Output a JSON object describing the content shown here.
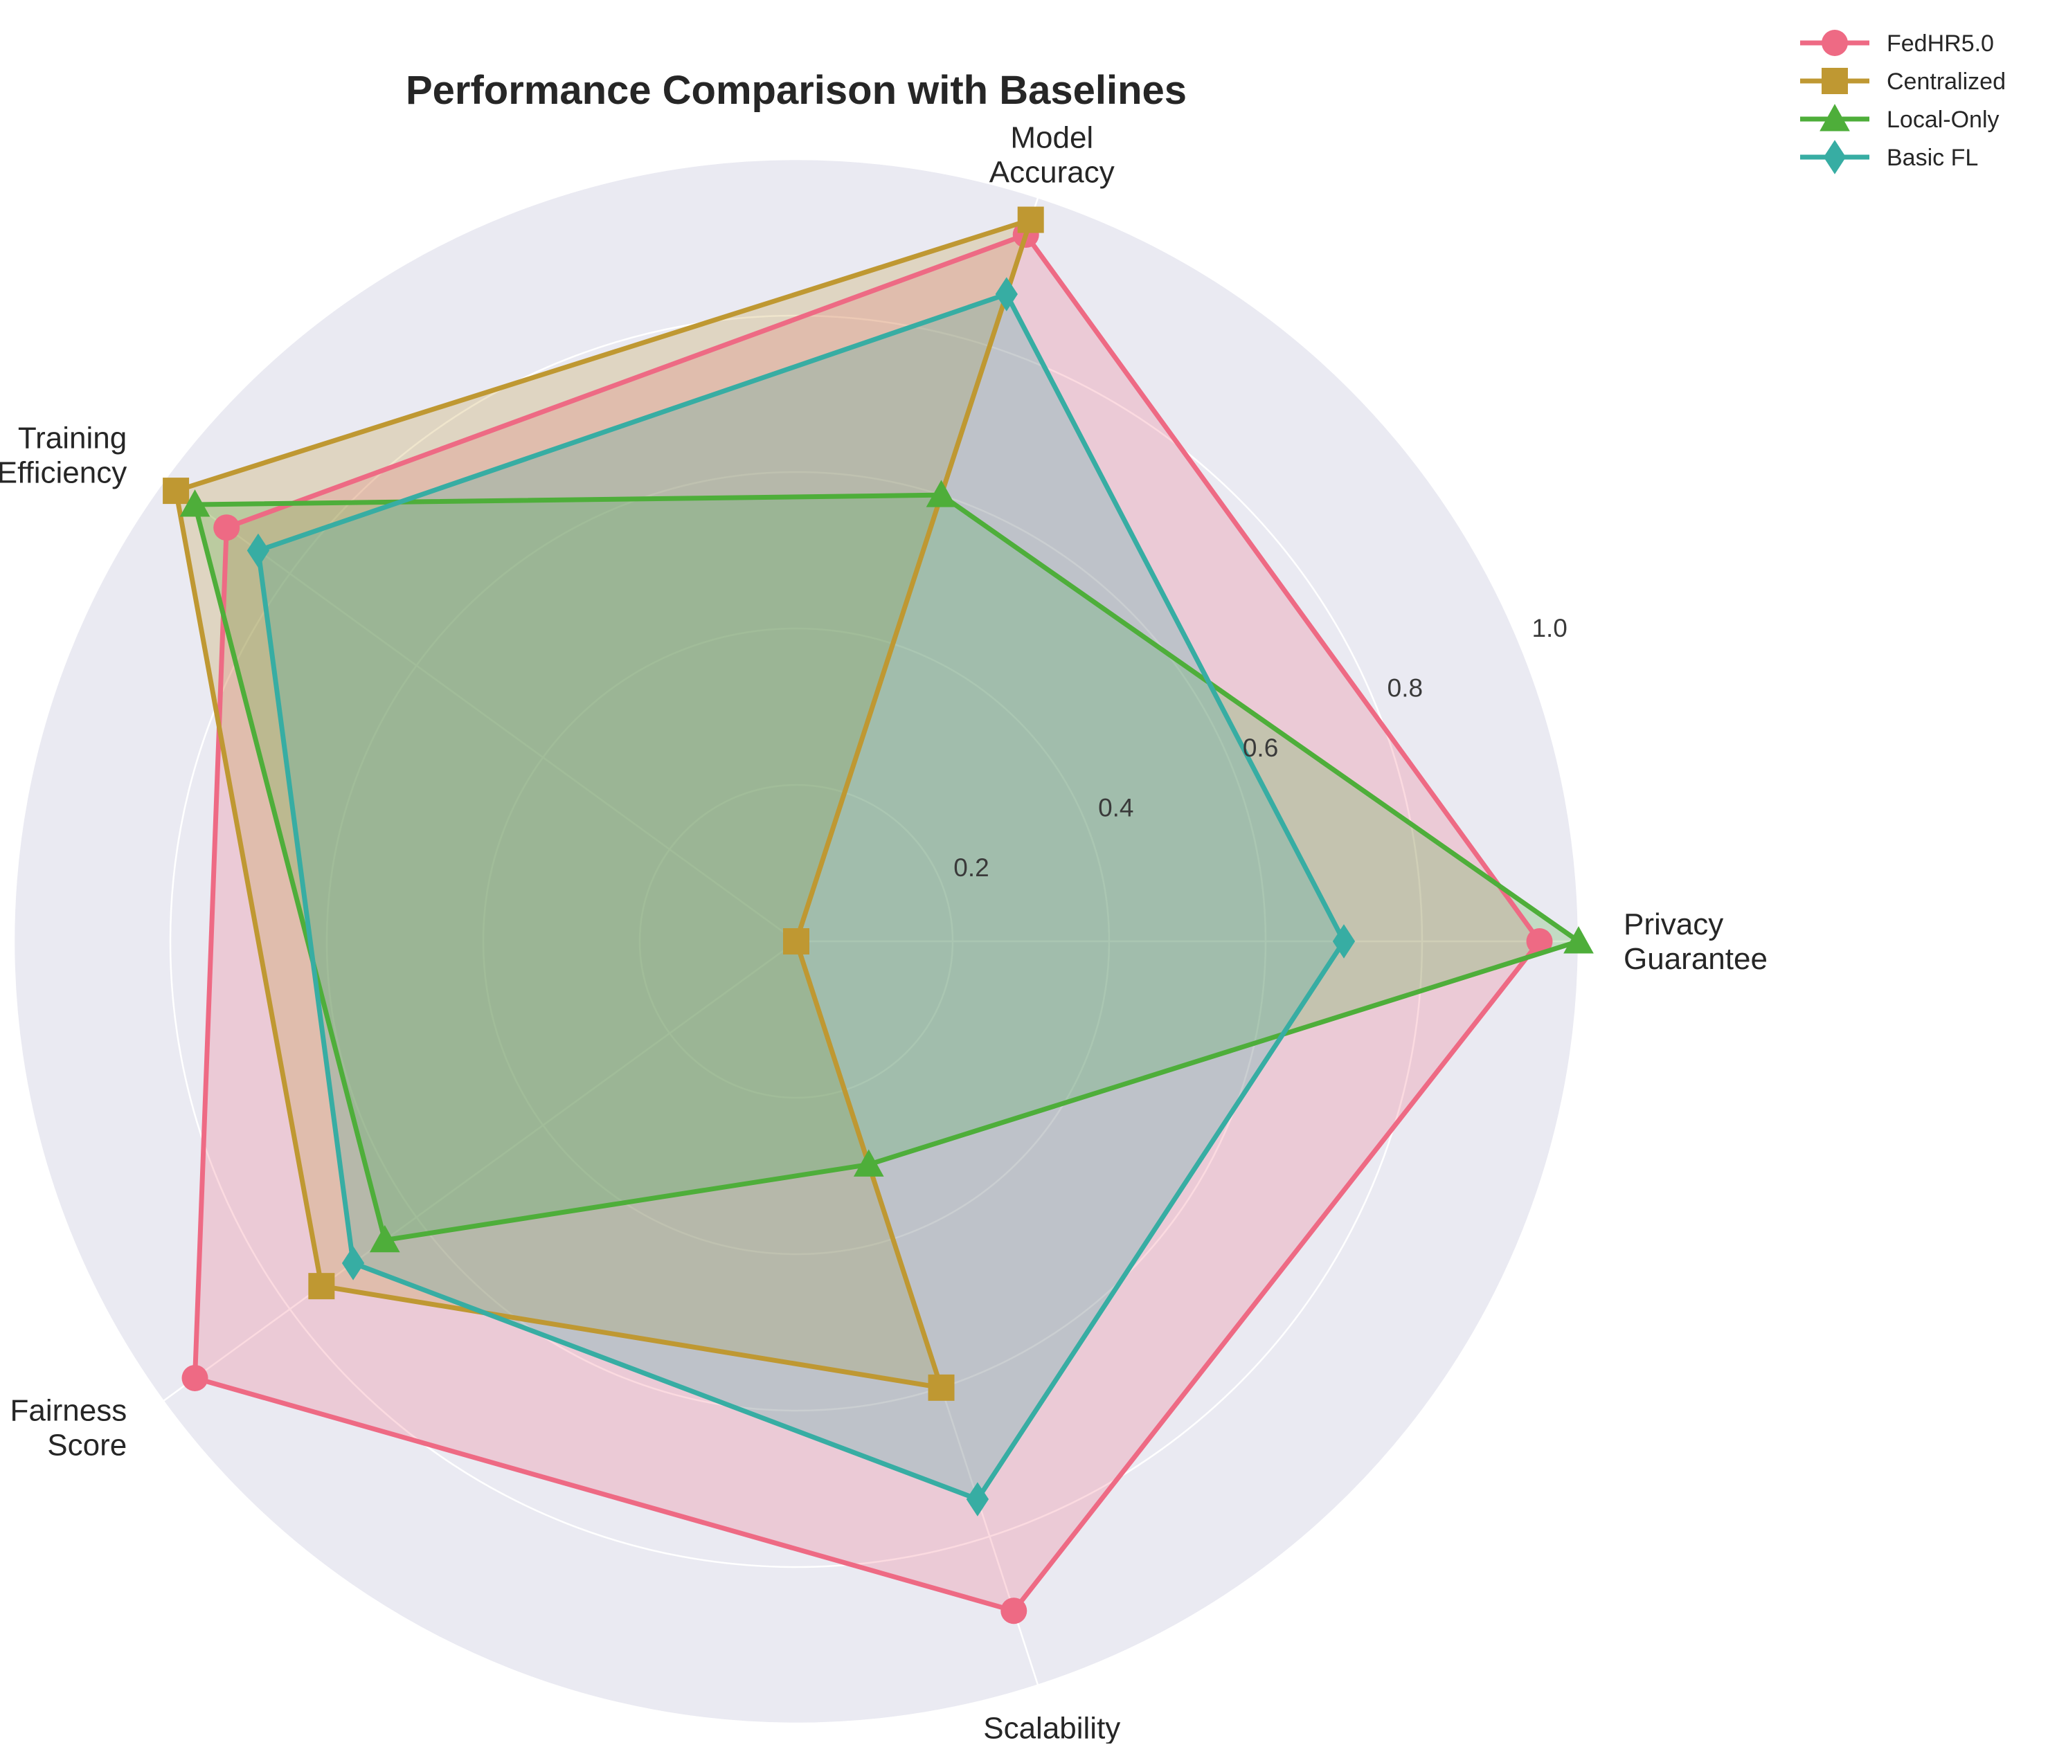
{
  "chart_data": {
    "type": "radar",
    "title": "Performance Comparison with Baselines",
    "axes": [
      [
        "Privacy",
        "Guarantee"
      ],
      [
        "Model",
        "Accuracy"
      ],
      [
        "Training",
        "Efficiency"
      ],
      [
        "Fairness",
        "Score"
      ],
      [
        "Scalability"
      ]
    ],
    "rlim": [
      0,
      1.0
    ],
    "rticks": [
      "0.2",
      "0.4",
      "0.6",
      "0.8",
      "1.0"
    ],
    "grid": true,
    "legend_position": "top-right",
    "series": [
      {
        "name": "FedHR5.0",
        "color": "#ee6a84",
        "marker": "circle",
        "values": [
          0.95,
          0.95,
          0.9,
          0.95,
          0.9
        ]
      },
      {
        "name": "Centralized",
        "color": "#bf9832",
        "marker": "square",
        "values": [
          0.0,
          0.97,
          0.98,
          0.75,
          0.6
        ]
      },
      {
        "name": "Local-Only",
        "color": "#4eae3a",
        "marker": "triangle",
        "values": [
          1.0,
          0.6,
          0.95,
          0.65,
          0.3
        ]
      },
      {
        "name": "Basic FL",
        "color": "#37ada3",
        "marker": "diamond",
        "values": [
          0.7,
          0.87,
          0.85,
          0.7,
          0.75
        ]
      }
    ]
  }
}
